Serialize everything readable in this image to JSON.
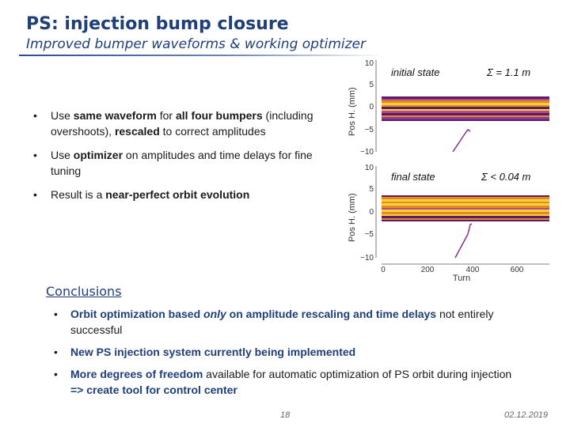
{
  "slide": {
    "title": "PS: injection bump closure",
    "subtitle": "Improved bumper waveforms & working optimizer",
    "page_number": "18",
    "date": "02.12.2019"
  },
  "bullets": [
    {
      "parts": [
        {
          "t": "Use "
        },
        {
          "t": "same waveform",
          "b": true
        },
        {
          "t": " for "
        },
        {
          "t": "all four bumpers",
          "b": true
        },
        {
          "t": " (including overshoots), "
        },
        {
          "t": "rescaled",
          "b": true
        },
        {
          "t": " to correct amplitudes"
        }
      ]
    },
    {
      "parts": [
        {
          "t": "Use "
        },
        {
          "t": "optimizer",
          "b": true
        },
        {
          "t": " on amplitudes and time delays for fine tuning"
        }
      ]
    },
    {
      "parts": [
        {
          "t": "Result is a "
        },
        {
          "t": "near-perfect orbit evolution",
          "b": true
        }
      ]
    }
  ],
  "plots": {
    "top": {
      "label": "initial state",
      "sigma": "Σ = 1.1 m"
    },
    "bottom": {
      "label": "final state",
      "sigma": "Σ < 0.04 m"
    },
    "ylabel": "Pos H. (mm)",
    "xlabel": "Turn",
    "top_yticks": [
      "10",
      "5",
      "0",
      "−5",
      "−10"
    ],
    "bottom_yticks": [
      "10",
      "5",
      "0",
      "−5",
      "−10"
    ],
    "xticks": [
      "0",
      "200",
      "400",
      "600"
    ]
  },
  "conclusions": {
    "heading": "Conclusions",
    "items": [
      {
        "parts": [
          {
            "t": "Orbit optimization based ",
            "c": true
          },
          {
            "t": "only",
            "c": true,
            "i": true
          },
          {
            "t": " on amplitude rescaling and time delays",
            "c": true
          },
          {
            "t": " not entirely successful"
          }
        ]
      },
      {
        "parts": [
          {
            "t": "New PS injection system currently being implemented",
            "c": true
          }
        ]
      },
      {
        "parts": [
          {
            "t": "More degrees of freedom",
            "c": true
          },
          {
            "t": " available for automatic optimization of PS orbit during injection "
          },
          {
            "t": "=> create tool for control center",
            "c": true
          }
        ]
      }
    ]
  },
  "colors": {
    "title": "#1f3f7a",
    "band_purple": "#5a1a6e",
    "band_orange": "#e8891e",
    "band_yellow": "#f5d33a",
    "trajectory": "#8a2a9a"
  }
}
